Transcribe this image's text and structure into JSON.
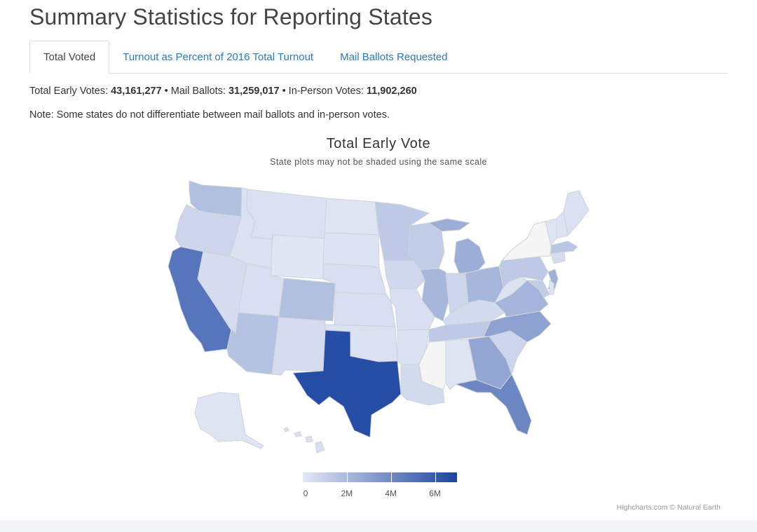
{
  "page": {
    "title": "Summary Statistics for Reporting States"
  },
  "tabs": [
    {
      "label": "Total Voted",
      "active": true
    },
    {
      "label": "Turnout as Percent of 2016 Total Turnout",
      "active": false
    },
    {
      "label": "Mail Ballots Requested",
      "active": false
    }
  ],
  "stats": {
    "early_label": "Total Early Votes: ",
    "early_value": "43,161,277",
    "sep1": " • Mail Ballots: ",
    "mail_value": "31,259,017",
    "sep2": " • In-Person Votes: ",
    "inperson_value": "11,902,260"
  },
  "note": "Note: Some states do not differentiate between mail ballots and in-person votes.",
  "credits": "Highcharts.com © Natural Earth",
  "colors": {
    "low": "#e3e8f5",
    "high": "#1b44a0",
    "nodata": "#f5f5f5",
    "tab_link": "#2a7ac5"
  },
  "chart_data": {
    "type": "choropleth-map",
    "title": "Total Early Vote",
    "subtitle": "State plots may not be shaded using the same scale",
    "legend": {
      "min": 0,
      "max": 7000000,
      "ticks": [
        {
          "value": 0,
          "label": "0"
        },
        {
          "value": 2000000,
          "label": "2M"
        },
        {
          "value": 4000000,
          "label": "4M"
        },
        {
          "value": 6000000,
          "label": "6M"
        }
      ]
    },
    "states": [
      {
        "code": "WA",
        "value": 1700000
      },
      {
        "code": "OR",
        "value": 800000
      },
      {
        "code": "CA",
        "value": 4900000
      },
      {
        "code": "NV",
        "value": 500000
      },
      {
        "code": "ID",
        "value": 300000
      },
      {
        "code": "MT",
        "value": 300000
      },
      {
        "code": "WY",
        "value": 100000
      },
      {
        "code": "UT",
        "value": 400000
      },
      {
        "code": "AZ",
        "value": 1600000
      },
      {
        "code": "CO",
        "value": 1700000
      },
      {
        "code": "NM",
        "value": 500000
      },
      {
        "code": "ND",
        "value": 150000
      },
      {
        "code": "SD",
        "value": 200000
      },
      {
        "code": "NE",
        "value": 400000
      },
      {
        "code": "KS",
        "value": 400000
      },
      {
        "code": "OK",
        "value": 300000
      },
      {
        "code": "TX",
        "value": 6600000
      },
      {
        "code": "MN",
        "value": 1300000
      },
      {
        "code": "IA",
        "value": 700000
      },
      {
        "code": "MO",
        "value": 400000
      },
      {
        "code": "AR",
        "value": 300000
      },
      {
        "code": "LA",
        "value": 600000
      },
      {
        "code": "WI",
        "value": 1200000
      },
      {
        "code": "IL",
        "value": 2100000
      },
      {
        "code": "MI",
        "value": 2500000
      },
      {
        "code": "IN",
        "value": 800000
      },
      {
        "code": "OH",
        "value": 2100000
      },
      {
        "code": "KY",
        "value": 600000
      },
      {
        "code": "TN",
        "value": 1300000
      },
      {
        "code": "MS",
        "value": 0
      },
      {
        "code": "AL",
        "value": 150000
      },
      {
        "code": "GA",
        "value": 2800000
      },
      {
        "code": "FL",
        "value": 4200000
      },
      {
        "code": "SC",
        "value": 800000
      },
      {
        "code": "NC",
        "value": 3000000
      },
      {
        "code": "VA",
        "value": 2200000
      },
      {
        "code": "WV",
        "value": 250000
      },
      {
        "code": "PA",
        "value": 1300000
      },
      {
        "code": "NY",
        "value": 0
      },
      {
        "code": "VT",
        "value": 150000
      },
      {
        "code": "NH",
        "value": 200000
      },
      {
        "code": "ME",
        "value": 300000
      },
      {
        "code": "MA",
        "value": 1500000
      },
      {
        "code": "NJ",
        "value": 2400000
      },
      {
        "code": "MD",
        "value": 1200000
      },
      {
        "code": "DE",
        "value": 200000
      },
      {
        "code": "CT",
        "value": 500000
      },
      {
        "code": "AK",
        "value": 150000
      },
      {
        "code": "HI",
        "value": 350000
      }
    ]
  }
}
